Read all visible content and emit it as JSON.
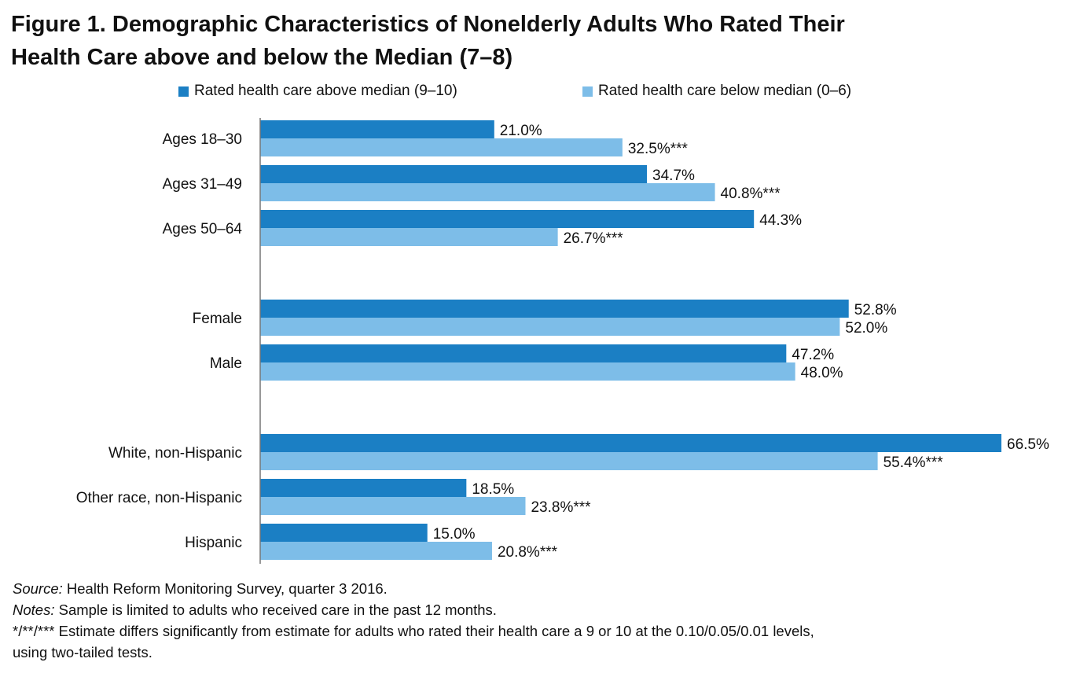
{
  "title_line1": "Figure 1. Demographic Characteristics of Nonelderly Adults Who Rated Their",
  "title_line2": "Health Care above and below the Median (7–8)",
  "colors": {
    "above": "#1b7fc4",
    "below": "#7dbde8"
  },
  "chart_data": {
    "type": "bar",
    "orientation": "horizontal",
    "categories": [
      "Ages 18–30",
      "Ages 31–49",
      "Ages 50–64",
      "Female",
      "Male",
      "White, non-Hispanic",
      "Other race, non-Hispanic",
      "Hispanic"
    ],
    "groups": [
      [
        0,
        1,
        2
      ],
      [
        3,
        4
      ],
      [
        5,
        6,
        7
      ]
    ],
    "series": [
      {
        "name": "Rated health care above median (9–10)",
        "values": [
          21.0,
          34.7,
          44.3,
          52.8,
          47.2,
          66.5,
          18.5,
          15.0
        ],
        "labels": [
          "21.0%",
          "34.7%",
          "44.3%",
          "52.8%",
          "47.2%",
          "66.5%",
          "18.5%",
          "15.0%"
        ]
      },
      {
        "name": "Rated health care below median (0–6)",
        "values": [
          32.5,
          40.8,
          26.7,
          52.0,
          48.0,
          55.4,
          23.8,
          20.8
        ],
        "labels": [
          "32.5%***",
          "40.8%***",
          "26.7%***",
          "52.0%",
          "48.0%",
          "55.4%***",
          "23.8%***",
          "20.8%***"
        ]
      }
    ],
    "xlim": [
      0,
      66.5
    ],
    "legend": "top",
    "grid": false
  },
  "notes": {
    "source_label": "Source:",
    "source_text": " Health Reform Monitoring Survey, quarter 3 2016.",
    "notes_label": "Notes:",
    "notes_text": " Sample is limited to adults who received care in the past 12 months.",
    "sig_line1": "*/**/*** Estimate differs significantly from estimate for adults who rated their health care a 9 or 10 at the 0.10/0.05/0.01 levels,",
    "sig_line2": "using two-tailed tests."
  }
}
